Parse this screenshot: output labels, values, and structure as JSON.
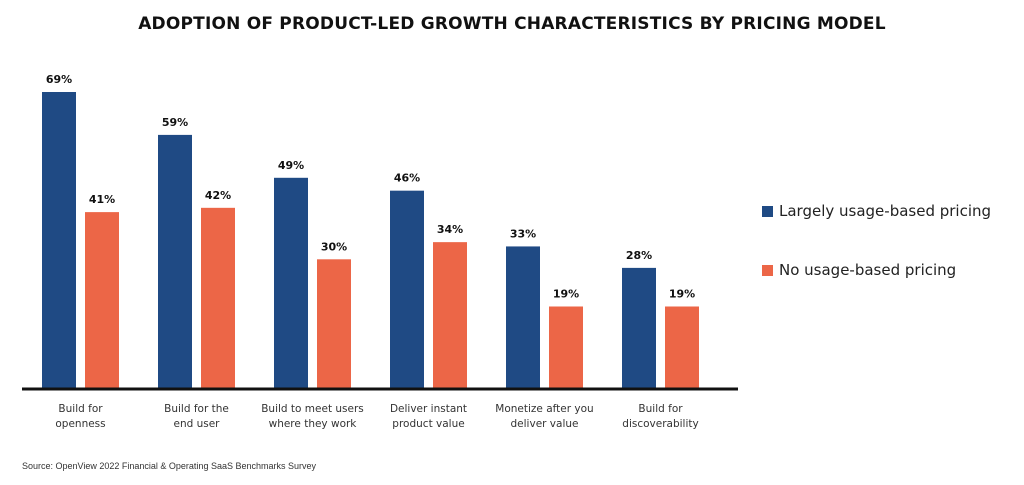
{
  "chart_data": {
    "type": "bar",
    "title": "ADOPTION OF PRODUCT-LED GROWTH CHARACTERISTICS BY PRICING MODEL",
    "categories": [
      [
        "Build for",
        "openness"
      ],
      [
        "Build for the",
        "end user"
      ],
      [
        "Build to meet users",
        "where they work"
      ],
      [
        "Deliver instant",
        "product value"
      ],
      [
        "Monetize after you",
        "deliver value"
      ],
      [
        "Build for",
        "discoverability"
      ]
    ],
    "series": [
      {
        "name": "Largely usage-based pricing",
        "color": "#1f4a84",
        "values": [
          69,
          59,
          49,
          46,
          33,
          28
        ],
        "labels": [
          "69%",
          "59%",
          "49%",
          "46%",
          "33%",
          "28%"
        ]
      },
      {
        "name": "No usage-based pricing",
        "color": "#ec6647",
        "values": [
          41,
          42,
          30,
          34,
          19,
          19
        ],
        "labels": [
          "41%",
          "42%",
          "30%",
          "34%",
          "19%",
          "19%"
        ]
      }
    ],
    "ylim": [
      0,
      69
    ],
    "grid": false,
    "legend_position": "right"
  },
  "source": "Source: OpenView 2022 Financial & Operating SaaS Benchmarks Survey"
}
